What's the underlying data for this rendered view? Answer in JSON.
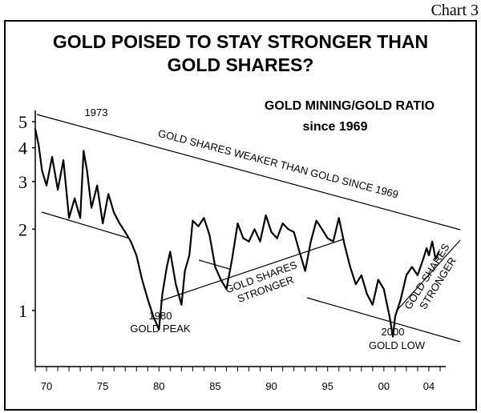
{
  "chart_label": "Chart 3",
  "chart_data": {
    "type": "line",
    "title_lines": [
      "GOLD POISED TO STAY STRONGER THAN",
      "GOLD SHARES?"
    ],
    "subtitle_lines": [
      "GOLD MINING/GOLD RATIO",
      "since 1969"
    ],
    "xlabel": "",
    "ylabel": "",
    "y_scale": "log",
    "ylim": [
      0.62,
      5.5
    ],
    "xlim": [
      1969.0,
      2005.5
    ],
    "y_ticks": [
      {
        "value": 1,
        "label": "1"
      },
      {
        "value": 2,
        "label": "2"
      },
      {
        "value": 3,
        "label": "3"
      },
      {
        "value": 4,
        "label": "4"
      },
      {
        "value": 5,
        "label": "5"
      }
    ],
    "x_ticks": [
      {
        "value": 1970,
        "label": "70"
      },
      {
        "value": 1975,
        "label": "75"
      },
      {
        "value": 1980,
        "label": "80"
      },
      {
        "value": 1985,
        "label": "85"
      },
      {
        "value": 1990,
        "label": "90"
      },
      {
        "value": 1995,
        "label": "95"
      },
      {
        "value": 2000,
        "label": "00"
      },
      {
        "value": 2004,
        "label": "04"
      }
    ],
    "series": [
      {
        "x": [
          1969.0,
          1969.3,
          1969.6,
          1970.0,
          1970.5,
          1971.0,
          1971.5,
          1972.0,
          1972.5,
          1973.0,
          1973.3,
          1973.6,
          1974.0,
          1974.5,
          1975.0,
          1975.5,
          1976.0,
          1976.5,
          1977.0,
          1977.5,
          1978.0,
          1978.5,
          1979.0,
          1979.5,
          1980.0,
          1980.3,
          1980.7,
          1981.0,
          1981.5,
          1982.0,
          1982.3,
          1982.7,
          1983.0,
          1983.5,
          1984.0,
          1984.5,
          1985.0,
          1985.5,
          1986.0,
          1986.5,
          1987.0,
          1987.5,
          1988.0,
          1988.5,
          1989.0,
          1989.5,
          1990.0,
          1990.5,
          1991.0,
          1991.5,
          1992.0,
          1992.5,
          1993.0,
          1993.5,
          1994.0,
          1994.5,
          1995.0,
          1995.5,
          1996.0,
          1996.5,
          1997.0,
          1997.5,
          1998.0,
          1998.5,
          1999.0,
          1999.5,
          2000.0,
          2000.5,
          2000.8,
          2001.0,
          2001.5,
          2002.0,
          2002.5,
          2003.0,
          2003.5,
          2003.8,
          2004.0,
          2004.3,
          2004.6,
          2004.9
        ],
        "values": [
          4.7,
          4.1,
          3.3,
          2.9,
          3.7,
          2.8,
          3.6,
          2.2,
          2.6,
          2.2,
          3.9,
          3.3,
          2.4,
          2.9,
          2.1,
          2.7,
          2.3,
          2.1,
          1.95,
          1.8,
          1.6,
          1.3,
          1.1,
          0.95,
          0.85,
          1.15,
          1.45,
          1.65,
          1.25,
          1.05,
          1.4,
          1.6,
          2.15,
          2.05,
          2.2,
          1.9,
          1.45,
          1.3,
          1.2,
          1.55,
          2.1,
          1.85,
          1.8,
          2.0,
          1.8,
          2.25,
          1.95,
          1.85,
          2.1,
          2.0,
          1.95,
          1.65,
          1.4,
          1.8,
          2.15,
          2.0,
          1.85,
          1.8,
          2.2,
          1.75,
          1.45,
          1.25,
          1.35,
          1.15,
          1.05,
          1.3,
          1.2,
          0.95,
          0.8,
          0.95,
          1.1,
          1.35,
          1.45,
          1.35,
          1.55,
          1.7,
          1.6,
          1.8,
          1.55,
          1.65
        ]
      }
    ],
    "annotations": [
      {
        "id": "label-1973",
        "text": "1973"
      },
      {
        "id": "label-weaker",
        "text": "GOLD SHARES WEAKER THAN GOLD SINCE 1969"
      },
      {
        "id": "label-stronger-1",
        "line1": "GOLD SHARES",
        "line2": "STRONGER"
      },
      {
        "id": "label-stronger-2",
        "line1": "GOLD SHARES",
        "line2": "STRONGER"
      },
      {
        "id": "label-1980",
        "line1": "1980",
        "line2": "GOLD PEAK"
      },
      {
        "id": "label-2000",
        "line1": "2000",
        "line2": "GOLD LOW"
      }
    ],
    "grid": false,
    "legend": "none"
  }
}
